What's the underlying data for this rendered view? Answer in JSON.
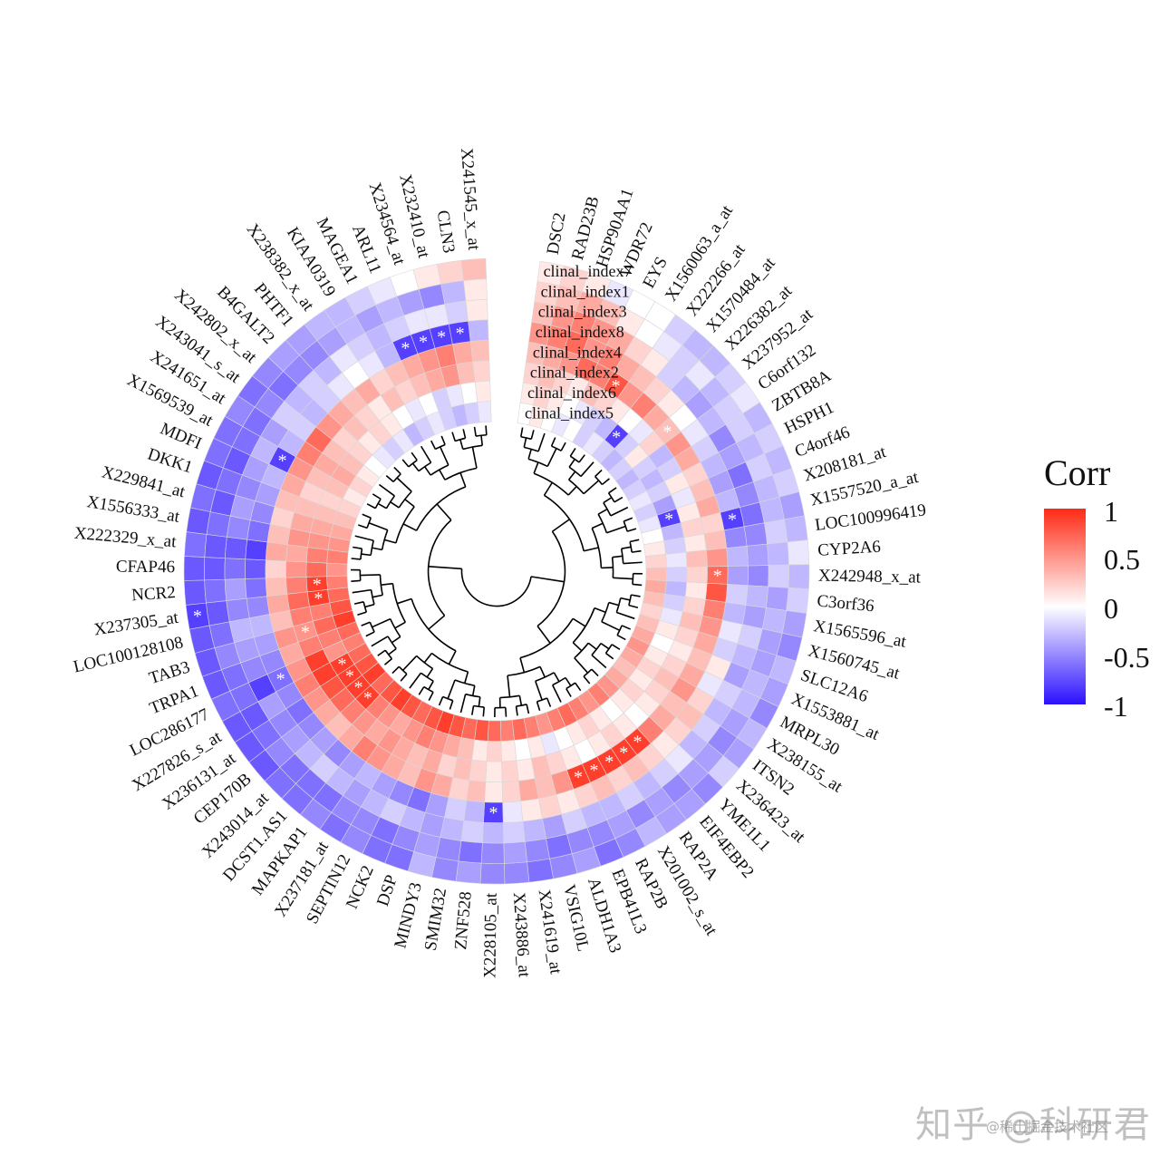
{
  "chart_data": {
    "type": "heatmap",
    "layout": "circular",
    "legend": {
      "title": "Corr",
      "ticks": [
        "1",
        "0.5",
        "0",
        "-0.5",
        "-1"
      ],
      "range": [
        -1,
        1
      ],
      "colors": {
        "low": "#2b10ff",
        "mid": "#ffffff",
        "high": "#ff2a14"
      },
      "position": "right"
    },
    "rows": [
      "clinal_index7",
      "clinal_index1",
      "clinal_index3",
      "clinal_index8",
      "clinal_index4",
      "clinal_index2",
      "clinal_index6",
      "clinal_index5"
    ],
    "genes": [
      "DSC2",
      "RAD23B",
      "HSP90AA1",
      "WDR72",
      "EYS",
      "X1560063_a_at",
      "X222266_at",
      "X1570484_at",
      "X226382_at",
      "X237952_at",
      "C6orf132",
      "ZBTB8A",
      "HSPH1",
      "C4orf46",
      "X208181_at",
      "X1557520_a_at",
      "LOC100996419",
      "CYP2A6",
      "X242948_x_at",
      "C3orf36",
      "X1565596_at",
      "X1560745_at",
      "SLC12A6",
      "X1553881_at",
      "MRPL30",
      "X238155_at",
      "ITSN2",
      "X236423_at",
      "YME1L1",
      "EIF4EBP2",
      "RAP2A",
      "X201002_s_at",
      "RAP2B",
      "EPB41L3",
      "ALDH1A3",
      "VSIG10L",
      "X241619_at",
      "X243886_at",
      "X228105_at",
      "ZNF528",
      "SMIM32",
      "MINDY3",
      "DSP",
      "NCK2",
      "SEPTIN12",
      "X237181_at",
      "MAPKAP1",
      "DCST1.AS1",
      "X243014_at",
      "CEP170B",
      "X236131_at",
      "X227826_s_at",
      "LOC286177",
      "TRPA1",
      "TAB3",
      "LOC100128108",
      "X237305_at",
      "NCR2",
      "CFAP46",
      "X222329_x_at",
      "X1556333_at",
      "X229841_at",
      "DKK1",
      "MDFI",
      "X1569539_at",
      "X241651_at",
      "X243041_s_at",
      "X242802_x_at",
      "B4GALT2",
      "PHTF1",
      "X238382_x_at",
      "KIAA0319",
      "MAGEA1",
      "ARL11",
      "X234564_at",
      "X232410_at",
      "CLN3",
      "X241545_x_at"
    ],
    "values": [
      [
        0.1,
        0.2,
        0.1,
        -0.1,
        0.0,
        0.0,
        -0.2,
        -0.3,
        -0.3,
        -0.2,
        -0.1,
        -0.3,
        -0.2,
        -0.3,
        -0.2,
        -0.4,
        -0.3,
        -0.1,
        -0.3,
        -0.2,
        -0.4,
        -0.5,
        -0.3,
        -0.4,
        -0.5,
        -0.3,
        -0.4,
        -0.2,
        -0.5,
        -0.4,
        -0.4,
        -0.3,
        -0.5,
        -0.6,
        -0.4,
        -0.5,
        -0.6,
        -0.5,
        -0.5,
        -0.4,
        -0.5,
        -0.3,
        -0.6,
        -0.6,
        -0.5,
        -0.6,
        -0.5,
        -0.6,
        -0.6,
        -0.7,
        -0.7,
        -0.7,
        -0.6,
        -0.7,
        -0.7,
        -0.7,
        -0.8,
        -0.7,
        -0.7,
        -0.6,
        -0.7,
        -0.6,
        -0.7,
        -0.6,
        -0.6,
        -0.5,
        -0.6,
        -0.5,
        -0.4,
        -0.4,
        -0.3,
        -0.3,
        -0.2,
        -0.1,
        0.0,
        0.1,
        0.2,
        0.3
      ],
      [
        0.2,
        0.3,
        0.4,
        0.3,
        0.1,
        0.0,
        -0.1,
        -0.2,
        -0.1,
        -0.3,
        -0.2,
        -0.2,
        -0.3,
        -0.2,
        -0.3,
        -0.3,
        -0.2,
        -0.3,
        -0.2,
        -0.4,
        -0.3,
        -0.4,
        -0.4,
        -0.3,
        -0.3,
        -0.4,
        -0.5,
        -0.4,
        -0.4,
        -0.5,
        -0.4,
        -0.5,
        -0.4,
        -0.5,
        -0.5,
        -0.6,
        -0.5,
        -0.4,
        -0.5,
        -0.6,
        -0.5,
        -0.4,
        -0.5,
        -0.6,
        -0.5,
        -0.5,
        -0.6,
        -0.6,
        -0.6,
        -0.5,
        -0.6,
        -0.7,
        -0.6,
        -0.6,
        -0.5,
        -0.6,
        -0.7,
        -0.6,
        -0.7,
        -0.7,
        -0.6,
        -0.7,
        -0.6,
        -0.7,
        -0.6,
        -0.6,
        -0.5,
        -0.6,
        -0.5,
        -0.5,
        -0.4,
        -0.3,
        -0.4,
        -0.3,
        -0.4,
        -0.5,
        -0.3,
        0.1
      ],
      [
        0.3,
        0.5,
        0.6,
        0.5,
        0.4,
        0.2,
        0.1,
        -0.2,
        -0.3,
        -0.4,
        -0.3,
        -0.5,
        -0.4,
        -0.6,
        -0.5,
        -0.6,
        -0.5,
        -0.4,
        -0.5,
        -0.3,
        -0.4,
        -0.2,
        -0.3,
        -0.4,
        -0.2,
        -0.3,
        -0.2,
        -0.3,
        -0.1,
        -0.2,
        -0.3,
        -0.2,
        -0.3,
        -0.3,
        -0.2,
        -0.4,
        -0.3,
        -0.2,
        -0.3,
        -0.2,
        -0.3,
        -0.4,
        -0.3,
        -0.2,
        -0.3,
        -0.4,
        -0.3,
        -0.2,
        -0.3,
        -0.4,
        -0.5,
        -0.4,
        -0.8,
        -0.5,
        -0.4,
        -0.3,
        -0.5,
        -0.4,
        -0.6,
        -0.7,
        -0.5,
        -0.4,
        -0.5,
        -0.4,
        -0.3,
        -0.4,
        -0.2,
        -0.3,
        -0.2,
        -0.3,
        -0.1,
        -0.2,
        -0.3,
        -0.2,
        -0.1,
        -0.1,
        -0.2,
        0.1
      ],
      [
        0.5,
        0.6,
        0.7,
        0.5,
        0.6,
        0.4,
        0.3,
        0.2,
        0.1,
        0.0,
        -0.1,
        -0.2,
        -0.3,
        -0.4,
        -0.3,
        -0.8,
        -0.5,
        -0.3,
        -0.4,
        -0.2,
        -0.3,
        -0.1,
        -0.2,
        0.1,
        -0.1,
        0.2,
        0.3,
        0.2,
        0.1,
        0.2,
        0.3,
        0.2,
        0.3,
        0.2,
        0.1,
        0.2,
        0.1,
        -0.1,
        -0.8,
        -0.3,
        -0.2,
        -0.4,
        -0.6,
        -0.5,
        -0.4,
        -0.3,
        -0.4,
        -0.5,
        -0.4,
        -0.5,
        -0.6,
        -0.5,
        -0.6,
        -0.5,
        -0.4,
        -0.3,
        -0.5,
        -0.6,
        -0.7,
        -0.8,
        -0.6,
        -0.5,
        -0.4,
        -0.3,
        -0.8,
        -0.3,
        -0.2,
        -0.3,
        -0.2,
        -0.1,
        0.0,
        -0.1,
        -0.3,
        -0.8,
        -0.8,
        -0.8,
        -0.8,
        -0.3
      ],
      [
        0.3,
        0.4,
        0.5,
        0.7,
        0.6,
        0.8,
        0.5,
        0.6,
        0.4,
        0.3,
        0.5,
        0.4,
        0.2,
        0.3,
        0.4,
        0.2,
        0.3,
        0.5,
        0.7,
        0.8,
        0.6,
        0.5,
        0.4,
        0.3,
        0.4,
        0.5,
        0.3,
        0.4,
        0.6,
        0.9,
        0.9,
        0.9,
        0.9,
        0.9,
        0.5,
        0.3,
        0.4,
        0.2,
        0.1,
        0.3,
        0.2,
        0.4,
        0.5,
        0.3,
        0.4,
        0.5,
        0.6,
        0.4,
        0.3,
        0.4,
        0.5,
        0.6,
        0.5,
        0.4,
        0.5,
        0.3,
        0.4,
        0.3,
        0.2,
        0.4,
        0.3,
        0.2,
        0.3,
        0.4,
        0.5,
        0.6,
        0.7,
        0.5,
        0.4,
        0.3,
        0.4,
        0.2,
        0.3,
        0.4,
        0.5,
        0.6,
        0.4,
        0.3
      ],
      [
        0.2,
        0.3,
        0.2,
        0.1,
        0.3,
        0.2,
        0.1,
        0.0,
        -0.1,
        0.2,
        -0.3,
        -0.2,
        0.1,
        -0.1,
        0.1,
        0.2,
        0.1,
        0.3,
        0.2,
        0.1,
        0.2,
        0.3,
        0.2,
        0.1,
        0.2,
        0.3,
        0.2,
        0.1,
        0.0,
        0.1,
        0.2,
        0.1,
        0.0,
        0.1,
        0.2,
        0.3,
        0.1,
        0.2,
        0.1,
        0.2,
        0.3,
        0.2,
        0.4,
        0.3,
        0.4,
        0.5,
        0.4,
        0.5,
        0.6,
        0.7,
        0.8,
        0.9,
        0.9,
        0.6,
        0.5,
        0.6,
        0.7,
        0.6,
        0.5,
        0.4,
        0.5,
        0.4,
        0.3,
        0.2,
        0.3,
        0.4,
        0.3,
        0.2,
        0.3,
        0.2,
        0.1,
        0.3,
        0.2,
        0.3,
        0.4,
        0.5,
        0.3,
        0.2
      ],
      [
        0.1,
        0.2,
        0.1,
        0.0,
        -0.1,
        -0.2,
        -0.3,
        -0.8,
        -0.2,
        0.1,
        -0.2,
        -0.3,
        -0.2,
        -0.4,
        -0.8,
        -0.3,
        -0.2,
        -0.1,
        -0.2,
        -0.3,
        -0.2,
        -0.1,
        0.1,
        0.0,
        0.1,
        0.2,
        0.1,
        0.2,
        0.1,
        0.0,
        0.1,
        0.2,
        0.1,
        0.0,
        -0.1,
        0.1,
        0.0,
        0.1,
        0.2,
        0.1,
        0.3,
        0.4,
        0.5,
        0.6,
        0.5,
        0.4,
        0.5,
        0.6,
        0.9,
        0.9,
        0.9,
        0.9,
        0.5,
        0.6,
        0.7,
        0.6,
        0.9,
        0.9,
        0.7,
        0.6,
        0.5,
        0.4,
        0.3,
        0.2,
        0.3,
        0.4,
        0.3,
        0.2,
        0.1,
        0.2,
        0.1,
        0.0,
        -0.1,
        0.0,
        -0.2,
        -0.1,
        0.0,
        0.1
      ],
      [
        0.0,
        0.1,
        0.0,
        -0.1,
        0.0,
        -0.2,
        -0.1,
        -0.2,
        -0.3,
        -0.2,
        -0.3,
        -0.2,
        -0.1,
        -0.2,
        -0.1,
        0.0,
        0.1,
        0.2,
        0.3,
        0.4,
        0.3,
        0.2,
        0.3,
        0.4,
        0.5,
        0.4,
        0.3,
        0.4,
        0.5,
        0.6,
        0.5,
        0.6,
        0.7,
        0.6,
        0.5,
        0.6,
        0.7,
        0.6,
        0.7,
        0.8,
        0.7,
        0.8,
        0.9,
        0.8,
        0.7,
        0.8,
        0.9,
        0.8,
        0.7,
        0.9,
        0.8,
        0.7,
        0.6,
        0.7,
        0.9,
        0.8,
        0.7,
        0.6,
        0.5,
        0.6,
        0.5,
        0.4,
        0.3,
        0.2,
        0.1,
        0.2,
        0.1,
        0.0,
        -0.1,
        -0.2,
        -0.1,
        -0.3,
        -0.2,
        -0.1,
        -0.2,
        -0.3,
        -0.2,
        -0.1
      ]
    ],
    "significant": [
      [
        3,
        15
      ],
      [
        3,
        38
      ],
      [
        3,
        64
      ],
      [
        3,
        73
      ],
      [
        3,
        74
      ],
      [
        3,
        75
      ],
      [
        3,
        76
      ],
      [
        4,
        5
      ],
      [
        4,
        18
      ],
      [
        4,
        29
      ],
      [
        4,
        30
      ],
      [
        4,
        31
      ],
      [
        4,
        32
      ],
      [
        4,
        33
      ],
      [
        6,
        7
      ],
      [
        6,
        14
      ],
      [
        6,
        48
      ],
      [
        6,
        49
      ],
      [
        6,
        50
      ],
      [
        6,
        51
      ],
      [
        6,
        56
      ],
      [
        6,
        57
      ],
      [
        5,
        54
      ],
      [
        4,
        9
      ],
      [
        0,
        56
      ],
      [
        3,
        52
      ]
    ],
    "marker": "*"
  },
  "watermark": "知乎 @科研君",
  "watermark_sub": "@稀土掘金技术社区"
}
